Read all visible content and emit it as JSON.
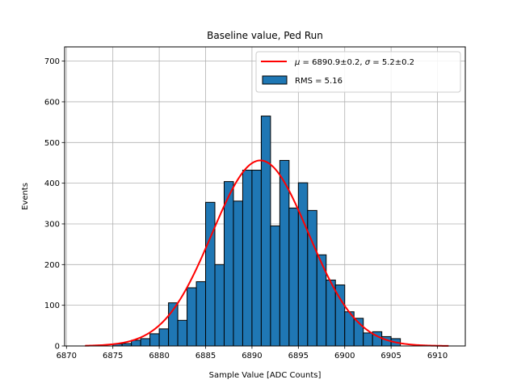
{
  "chart_data": {
    "type": "bar",
    "title": "Baseline value, Ped Run",
    "xlabel": "Sample Value [ADC Counts]",
    "ylabel": "Events",
    "xlim": [
      6869.8,
      6913.0
    ],
    "ylim": [
      0,
      735
    ],
    "xticks": [
      6870,
      6875,
      6880,
      6885,
      6890,
      6895,
      6900,
      6905,
      6910
    ],
    "yticks": [
      0,
      100,
      200,
      300,
      400,
      500,
      600,
      700
    ],
    "grid": true,
    "legend_position": "top-right",
    "bin_width": 1,
    "bins": [
      {
        "x": 6875.5,
        "y": 5
      },
      {
        "x": 6876.5,
        "y": 6
      },
      {
        "x": 6877.5,
        "y": 14
      },
      {
        "x": 6878.5,
        "y": 18
      },
      {
        "x": 6879.5,
        "y": 30
      },
      {
        "x": 6880.5,
        "y": 42
      },
      {
        "x": 6881.5,
        "y": 106
      },
      {
        "x": 6882.5,
        "y": 63
      },
      {
        "x": 6883.5,
        "y": 143
      },
      {
        "x": 6884.5,
        "y": 158
      },
      {
        "x": 6885.5,
        "y": 353
      },
      {
        "x": 6886.5,
        "y": 200
      },
      {
        "x": 6887.5,
        "y": 404
      },
      {
        "x": 6888.5,
        "y": 356
      },
      {
        "x": 6889.5,
        "y": 432
      },
      {
        "x": 6890.5,
        "y": 432
      },
      {
        "x": 6891.5,
        "y": 565
      },
      {
        "x": 6892.5,
        "y": 295
      },
      {
        "x": 6893.5,
        "y": 456
      },
      {
        "x": 6894.5,
        "y": 339
      },
      {
        "x": 6895.5,
        "y": 401
      },
      {
        "x": 6896.5,
        "y": 333
      },
      {
        "x": 6897.5,
        "y": 224
      },
      {
        "x": 6898.5,
        "y": 162
      },
      {
        "x": 6899.5,
        "y": 150
      },
      {
        "x": 6900.5,
        "y": 84
      },
      {
        "x": 6901.5,
        "y": 68
      },
      {
        "x": 6902.5,
        "y": 32
      },
      {
        "x": 6903.5,
        "y": 35
      },
      {
        "x": 6904.5,
        "y": 23
      },
      {
        "x": 6905.5,
        "y": 18
      }
    ],
    "fit": {
      "mu": 6890.9,
      "sigma": 5.2,
      "amplitude": 456,
      "x_range": [
        6872.0,
        6911.2
      ]
    },
    "colors": {
      "bar_fill": "#1f77b4",
      "bar_edge": "#000000",
      "fit_line": "#ff0000",
      "grid": "#b0b0b0"
    },
    "legend": {
      "fit_mu_symbol": "μ",
      "fit_mu_text": " = 6890.9±0.2, ",
      "fit_sigma_symbol": "σ",
      "fit_sigma_text": " = 5.2±0.2",
      "hist_label": "RMS = 5.16"
    }
  }
}
